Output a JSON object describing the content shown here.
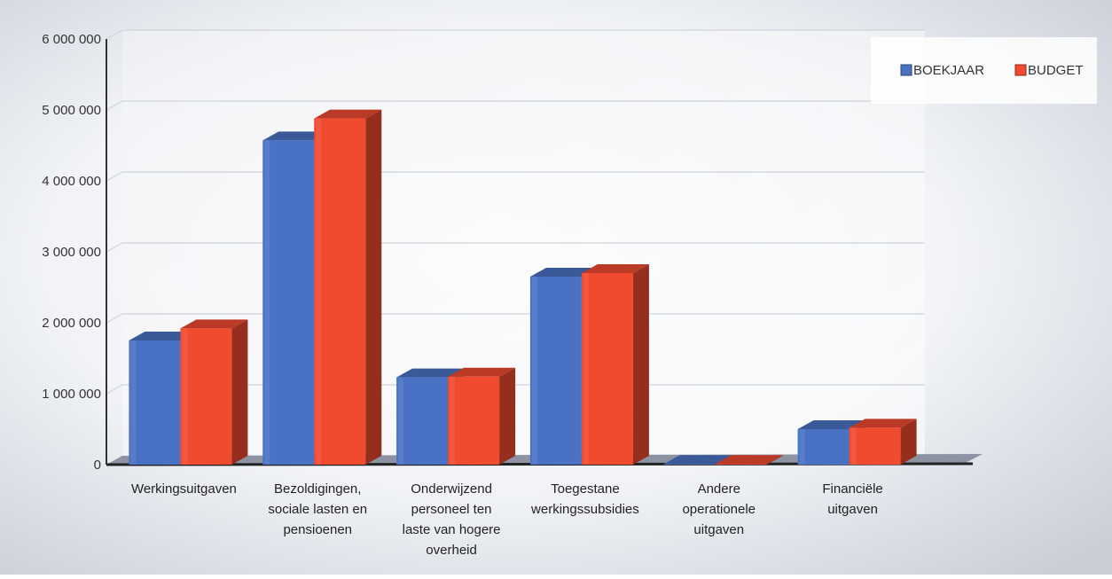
{
  "chart_data": {
    "type": "bar",
    "title": "",
    "xlabel": "",
    "ylabel": "",
    "ylim": [
      0,
      6000000
    ],
    "yticks": [
      0,
      1000000,
      2000000,
      3000000,
      4000000,
      5000000,
      6000000
    ],
    "ytick_labels": [
      "0",
      "1 000 000",
      "2 000 000",
      "3 000 000",
      "4 000 000",
      "5 000 000",
      "6 000 000"
    ],
    "categories": [
      [
        "Werkingsuitgaven"
      ],
      [
        "Bezoldigingen,",
        "sociale lasten en",
        "pensioenen"
      ],
      [
        "Onderwijzend",
        "personeel ten",
        "laste van hogere",
        "overheid"
      ],
      [
        "Toegestane",
        "werkingssubsidies"
      ],
      [
        "Andere",
        "operationele",
        "uitgaven"
      ],
      [
        "Financiële",
        "uitgaven"
      ]
    ],
    "series": [
      {
        "name": "BOEKJAAR",
        "color": "#4a72c4",
        "values": [
          1750000,
          4570000,
          1230000,
          2650000,
          10000,
          500000
        ]
      },
      {
        "name": "BUDGET",
        "color": "#f04a2f",
        "values": [
          1920000,
          4880000,
          1240000,
          2700000,
          10000,
          520000
        ]
      }
    ],
    "grid": true,
    "legend_position": "top-right",
    "style": "3d-clustered-column"
  }
}
